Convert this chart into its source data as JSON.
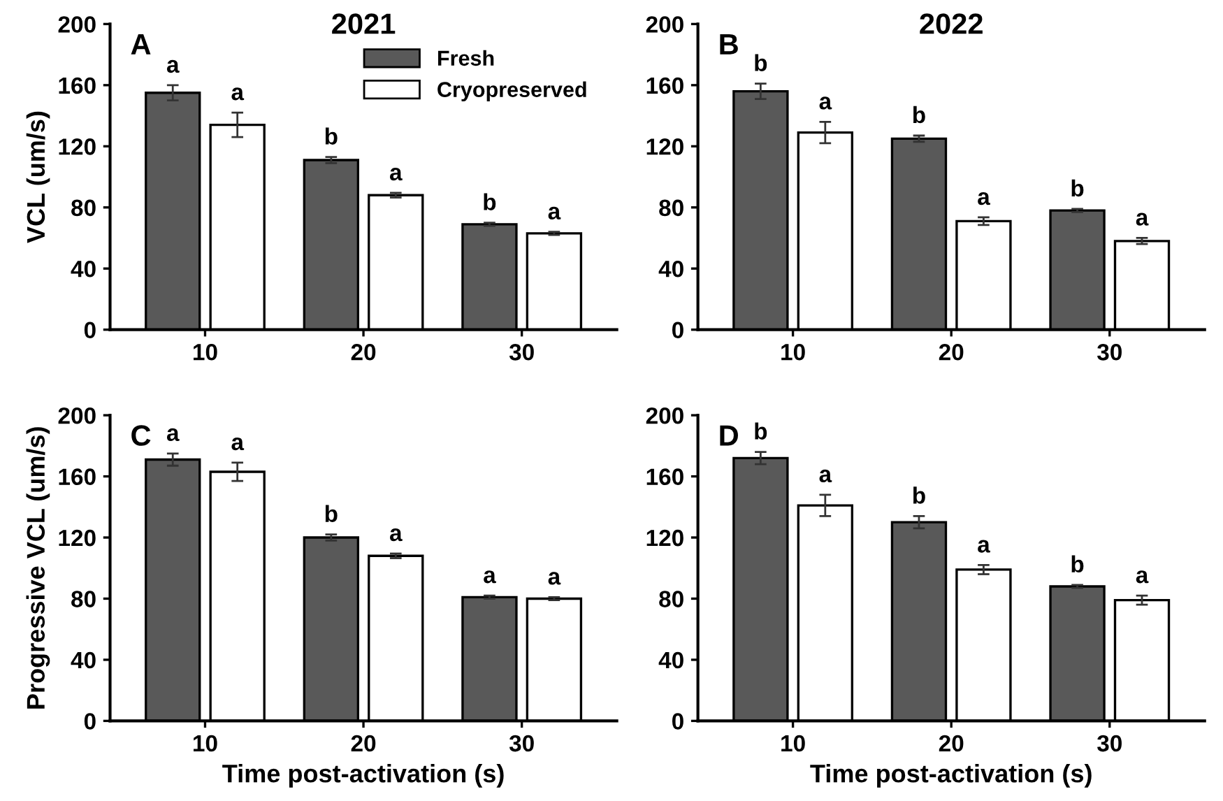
{
  "chart_data": [
    {
      "type": "bar",
      "title": "2021",
      "ylabel": "VCL (um/s)",
      "annotations": [
        "A"
      ],
      "categories": [
        "10",
        "20",
        "30"
      ],
      "ylim": [
        0,
        200
      ],
      "yticks": [
        0,
        40,
        80,
        120,
        160,
        200
      ],
      "legend": "top right",
      "series": [
        {
          "name": "Fresh",
          "color": "#595959",
          "values": [
            155,
            111,
            69
          ],
          "errors": [
            5,
            2,
            1
          ],
          "value_labels": [
            "a",
            "b",
            "b"
          ]
        },
        {
          "name": "Cryopreserved",
          "color": "#ffffff",
          "values": [
            134,
            88,
            63
          ],
          "errors": [
            8,
            1.5,
            1
          ],
          "value_labels": [
            "a",
            "a",
            "a"
          ]
        }
      ]
    },
    {
      "type": "bar",
      "title": "2022",
      "annotations": [
        "B"
      ],
      "categories": [
        "10",
        "20",
        "30"
      ],
      "ylim": [
        0,
        200
      ],
      "yticks": [
        0,
        40,
        80,
        120,
        160,
        200
      ],
      "series": [
        {
          "color": "#595959",
          "values": [
            156,
            125,
            78
          ],
          "errors": [
            5,
            2,
            1
          ],
          "value_labels": [
            "b",
            "b",
            "b"
          ]
        },
        {
          "color": "#ffffff",
          "values": [
            129,
            71,
            58
          ],
          "errors": [
            7,
            2.5,
            2
          ],
          "value_labels": [
            "a",
            "a",
            "a"
          ]
        }
      ]
    },
    {
      "type": "bar",
      "ylabel": "Progressive VCL (um/s)",
      "xlabel": "Time post-activation (s)",
      "annotations": [
        "C"
      ],
      "categories": [
        "10",
        "20",
        "30"
      ],
      "ylim": [
        0,
        200
      ],
      "yticks": [
        0,
        40,
        80,
        120,
        160,
        200
      ],
      "series": [
        {
          "color": "#595959",
          "values": [
            171,
            120,
            81
          ],
          "errors": [
            4,
            2,
            1
          ],
          "value_labels": [
            "a",
            "b",
            "a"
          ]
        },
        {
          "color": "#ffffff",
          "values": [
            163,
            108,
            80
          ],
          "errors": [
            6,
            1.5,
            1
          ],
          "value_labels": [
            "a",
            "a",
            "a"
          ]
        }
      ]
    },
    {
      "type": "bar",
      "xlabel": "Time post-activation (s)",
      "annotations": [
        "D"
      ],
      "categories": [
        "10",
        "20",
        "30"
      ],
      "ylim": [
        0,
        200
      ],
      "yticks": [
        0,
        40,
        80,
        120,
        160,
        200
      ],
      "series": [
        {
          "color": "#595959",
          "values": [
            172,
            130,
            88
          ],
          "errors": [
            4,
            4,
            1
          ],
          "value_labels": [
            "b",
            "b",
            "b"
          ]
        },
        {
          "color": "#ffffff",
          "values": [
            141,
            99,
            79
          ],
          "errors": [
            7,
            3,
            3
          ],
          "value_labels": [
            "a",
            "a",
            "a"
          ]
        }
      ]
    }
  ]
}
